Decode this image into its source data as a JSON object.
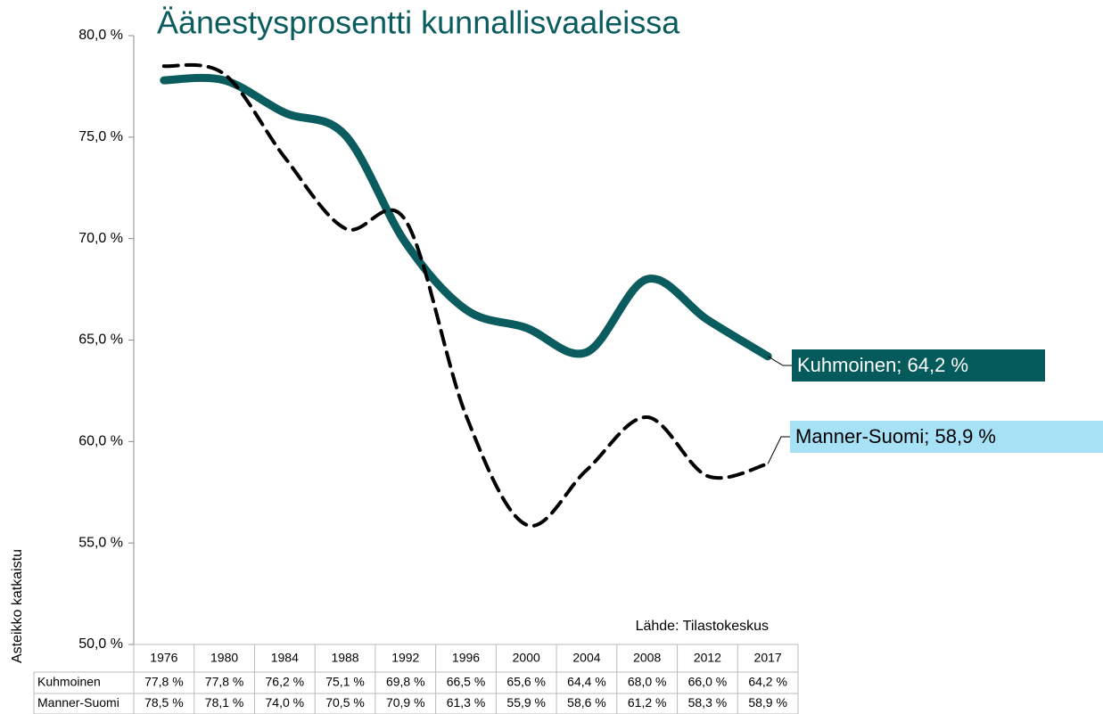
{
  "chart_data": {
    "type": "line",
    "title": "Äänestysprosentti kunnallisvaaleissa",
    "y_label": "Asteikko katkaistu",
    "source": "Lähde: Tilastokeskus",
    "categories": [
      "1976",
      "1980",
      "1984",
      "1988",
      "1992",
      "1996",
      "2000",
      "2004",
      "2008",
      "2012",
      "2017"
    ],
    "series": [
      {
        "name": "Kuhmoinen",
        "color": "#0a5c5e",
        "label": "Kuhmoinen; 64,2 %",
        "values": [
          77.8,
          77.8,
          76.2,
          75.1,
          69.8,
          66.5,
          65.6,
          64.4,
          68.0,
          66.0,
          64.2
        ],
        "value_labels": [
          "77,8 %",
          "77,8 %",
          "76,2 %",
          "75,1 %",
          "69,8 %",
          "66,5 %",
          "65,6 %",
          "64,4 %",
          "68,0 %",
          "66,0 %",
          "64,2 %"
        ]
      },
      {
        "name": "Manner-Suomi",
        "color": "#000000",
        "label": "Manner-Suomi; 58,9 %",
        "values": [
          78.5,
          78.1,
          74.0,
          70.5,
          70.9,
          61.3,
          55.9,
          58.6,
          61.2,
          58.3,
          58.9
        ],
        "value_labels": [
          "78,5 %",
          "78,1 %",
          "74,0 %",
          "70,5 %",
          "70,9 %",
          "61,3 %",
          "55,9 %",
          "58,6 %",
          "61,2 %",
          "58,3 %",
          "58,9 %"
        ]
      }
    ],
    "ylim": [
      50,
      80
    ],
    "yticks": [
      {
        "value": 50,
        "label": "50,0 %"
      },
      {
        "value": 55,
        "label": "55,0 %"
      },
      {
        "value": 60,
        "label": "60,0 %"
      },
      {
        "value": 65,
        "label": "65,0 %"
      },
      {
        "value": 70,
        "label": "70,0 %"
      },
      {
        "value": 75,
        "label": "75,0 %"
      },
      {
        "value": 80,
        "label": "80,0 %"
      }
    ]
  }
}
